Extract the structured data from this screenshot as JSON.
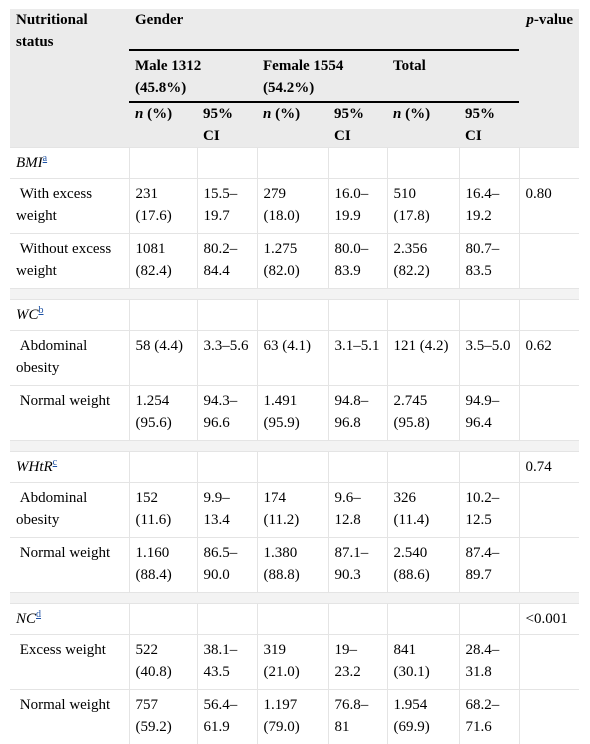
{
  "header": {
    "nutritional_status": "Nutritional status",
    "gender": "Gender",
    "p_value": "-value",
    "p_letter": "p",
    "male": "Male 1312",
    "male_pct": "(45.8%)",
    "female": "Female 1554",
    "female_pct": "(54.2%)",
    "total": "Total",
    "n_letter": "n",
    "n_pct": " (%)",
    "ci": "95% CI"
  },
  "sections": [
    {
      "label": "BMI",
      "footnote": "a",
      "p_value": "",
      "rows": [
        {
          "label": "With excess weight",
          "cells": [
            "231 (17.6)",
            "15.5–19.7",
            "279 (18.0)",
            "16.0–19.9",
            "510 (17.8)",
            "16.4–19.2"
          ],
          "p_value": "0.80"
        },
        {
          "label": "Without excess weight",
          "cells": [
            "1081 (82.4)",
            "80.2–84.4",
            "1.275 (82.0)",
            "80.0–83.9",
            "2.356 (82.2)",
            "80.7–83.5"
          ],
          "p_value": ""
        }
      ]
    },
    {
      "label": "WC",
      "footnote": "b",
      "p_value": "",
      "rows": [
        {
          "label": "Abdominal obesity",
          "cells": [
            "58 (4.4)",
            "3.3–5.6",
            "63 (4.1)",
            "3.1–5.1",
            "121 (4.2)",
            "3.5–5.0"
          ],
          "p_value": "0.62"
        },
        {
          "label": "Normal weight",
          "cells": [
            "1.254 (95.6)",
            "94.3–96.6",
            "1.491 (95.9)",
            "94.8–96.8",
            "2.745 (95.8)",
            "94.9–96.4"
          ],
          "p_value": ""
        }
      ]
    },
    {
      "label": "WHtR",
      "footnote": "c",
      "p_value": "0.74",
      "rows": [
        {
          "label": "Abdominal obesity",
          "cells": [
            "152 (11.6)",
            "9.9–13.4",
            "174 (11.2)",
            "9.6–12.8",
            "326 (11.4)",
            "10.2–12.5"
          ],
          "p_value": ""
        },
        {
          "label": "Normal weight",
          "cells": [
            "1.160 (88.4)",
            "86.5–90.0",
            "1.380 (88.8)",
            "87.1–90.3",
            "2.540 (88.6)",
            "87.4–89.7"
          ],
          "p_value": ""
        }
      ]
    },
    {
      "label": "NC",
      "footnote": "d",
      "p_value": "<0.001",
      "rows": [
        {
          "label": "Excess weight",
          "cells": [
            "522 (40.8)",
            "38.1–43.5",
            "319 (21.0)",
            "19–23.2",
            "841 (30.1)",
            "28.4–31.8"
          ],
          "p_value": ""
        },
        {
          "label": "Normal weight",
          "cells": [
            "757 (59.2)",
            "56.4–61.9",
            "1.197 (79.0)",
            "76.8–81",
            "1.954 (69.9)",
            "68.2–71.6"
          ],
          "p_value": ""
        }
      ]
    }
  ]
}
